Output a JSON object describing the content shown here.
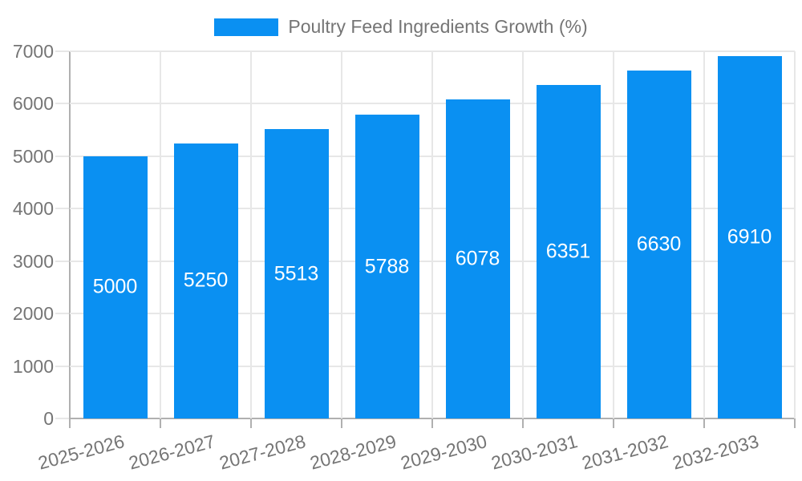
{
  "chart_data": {
    "type": "bar",
    "legend": {
      "label": "Poultry Feed Ingredients Growth (%)",
      "position": "top"
    },
    "categories": [
      "2025-2026",
      "2026-2027",
      "2027-2028",
      "2028-2029",
      "2029-2030",
      "2030-2031",
      "2031-2032",
      "2032-2033"
    ],
    "series": [
      {
        "name": "Poultry Feed Ingredients Growth (%)",
        "values": [
          5000,
          5250,
          5513,
          5788,
          6078,
          6351,
          6630,
          6910
        ]
      }
    ],
    "bar_value_labels": [
      "5000",
      "5250",
      "5513",
      "5788",
      "6078",
      "6351",
      "6630",
      "6910"
    ],
    "xlabel": "",
    "ylabel": "",
    "ylim": [
      0,
      7000
    ],
    "yticks": [
      0,
      1000,
      2000,
      3000,
      4000,
      5000,
      6000,
      7000
    ],
    "grid": "horizontal-and-vertical",
    "x_label_rotation_deg": -15,
    "colors": {
      "bar": "#0a90f2",
      "bar_label_text": "#ffffff",
      "axis_text": "#757575",
      "gridline": "#e7e7e7",
      "axis_line": "#b0b0b0",
      "background": "#ffffff"
    }
  }
}
